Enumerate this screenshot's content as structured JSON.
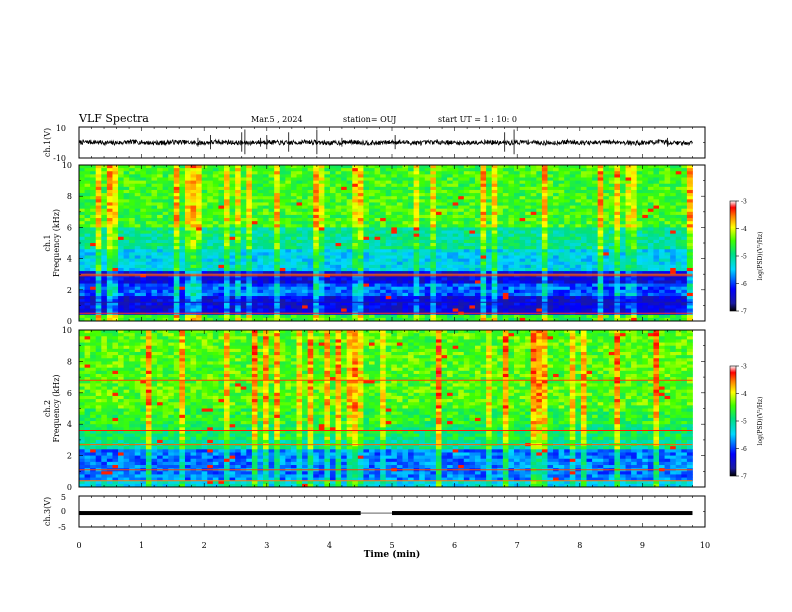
{
  "header": {
    "title": "VLF Spectra",
    "date": "Mar.5 , 2024",
    "station": "station= OUJ",
    "start": "start UT =  1 : 10: 0"
  },
  "chart_data": [
    {
      "type": "line",
      "panel": "ch1-waveform",
      "ylabel": "ch.1(V)",
      "ylim": [
        -10,
        10
      ],
      "y_ticks": [
        "10",
        "-10"
      ],
      "xlim": [
        0,
        10
      ],
      "baseline_v": 0,
      "approx_amplitude_v": 1.5
    },
    {
      "type": "heatmap",
      "panel": "ch1-spectrogram",
      "ylabel": "ch.1\nFrequency (kHz)",
      "ylim": [
        0,
        10
      ],
      "y_ticks": [
        "0",
        "2",
        "4",
        "6",
        "8",
        "10"
      ],
      "xlim": [
        0,
        10
      ],
      "data_end_min": 9.8,
      "colorbar": {
        "label": "log(PSD)(V²/Hz)",
        "range": [
          -7,
          -3
        ],
        "ticks": [
          "-3",
          "-4",
          "-5",
          "-6",
          "-7"
        ]
      }
    },
    {
      "type": "heatmap",
      "panel": "ch2-spectrogram",
      "ylabel": "ch.2\nFrequency (kHz)",
      "ylim": [
        0,
        10
      ],
      "y_ticks": [
        "0",
        "2",
        "4",
        "6",
        "8",
        "10"
      ],
      "xlim": [
        0,
        10
      ],
      "data_end_min": 9.8,
      "colorbar": {
        "label": "log(PSD)(V²/Hz)",
        "range": [
          -7,
          -3
        ],
        "ticks": [
          "-3",
          "-4",
          "-5",
          "-6",
          "-7"
        ]
      }
    },
    {
      "type": "line",
      "panel": "ch3-waveform",
      "ylabel": "ch.3(V)",
      "ylim": [
        -5,
        5
      ],
      "y_ticks": [
        "5",
        "0",
        "-5"
      ],
      "xlim": [
        0,
        10
      ],
      "xlabel": "Time (min)",
      "x_ticks": [
        "0",
        "1",
        "2",
        "3",
        "4",
        "5",
        "6",
        "7",
        "8",
        "9",
        "10"
      ],
      "level_v": -0.5,
      "gap_min": [
        4.5,
        5.0
      ]
    }
  ]
}
